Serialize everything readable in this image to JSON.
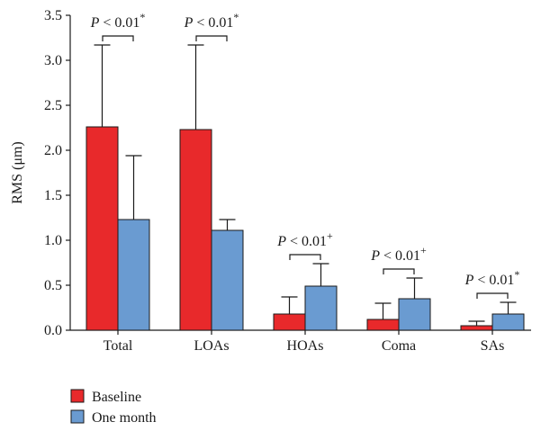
{
  "chart_data": {
    "type": "bar",
    "categories": [
      "Total",
      "LOAs",
      "HOAs",
      "Coma",
      "SAs"
    ],
    "series": [
      {
        "name": "Baseline",
        "color": "#e8292b",
        "values": [
          2.26,
          2.23,
          0.18,
          0.12,
          0.05
        ],
        "error": [
          0.91,
          0.94,
          0.19,
          0.18,
          0.05
        ]
      },
      {
        "name": "One month",
        "color": "#6a9bd1",
        "values": [
          1.23,
          1.11,
          0.49,
          0.35,
          0.18
        ],
        "error": [
          0.71,
          0.12,
          0.25,
          0.23,
          0.13
        ]
      }
    ],
    "ylabel": "RMS (μm)",
    "xlabel": "",
    "ylim": [
      0,
      3.5
    ],
    "yticks": [
      "0.0",
      "0.5",
      "1.0",
      "1.5",
      "2.0",
      "2.5",
      "3.0",
      "3.5"
    ],
    "grid": false,
    "legend_position": "bottom-left",
    "annotations": [
      {
        "category": "Total",
        "text": "P < 0.01",
        "mark": "*"
      },
      {
        "category": "LOAs",
        "text": "P < 0.01",
        "mark": "*"
      },
      {
        "category": "HOAs",
        "text": "P < 0.01",
        "mark": "+"
      },
      {
        "category": "Coma",
        "text": "P < 0.01",
        "mark": "+"
      },
      {
        "category": "SAs",
        "text": "P < 0.01",
        "mark": "*"
      }
    ]
  }
}
